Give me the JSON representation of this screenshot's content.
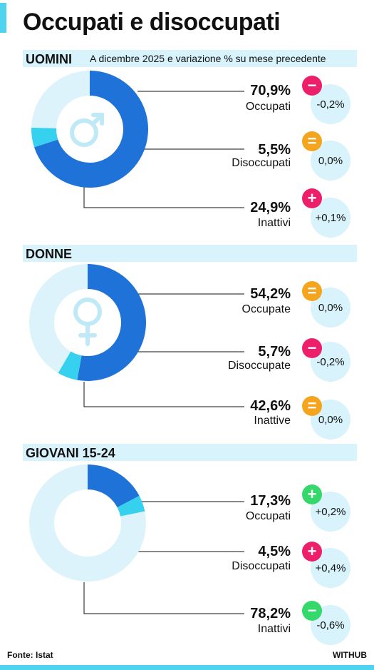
{
  "title": "Occupati e disoccupati",
  "subtitle": "A dicembre 2025 e variazione % su mese precedente",
  "source": "Fonte: Istat",
  "brand": "WITHUB",
  "colors": {
    "occupati": "#1f73d8",
    "disoccupati": "#36d1ef",
    "inattivi": "#dcf3fb",
    "badge_negative": "#ee1f6a",
    "badge_stable": "#f5a41d",
    "badge_positive_red": "#ee1f6a",
    "badge_positive_green": "#35d86a",
    "badge_negative_green": "#35d86a"
  },
  "chart_data": [
    {
      "type": "pie",
      "title": "UOMINI",
      "icon": "male-symbol-icon",
      "categories": [
        "Occupati",
        "Disoccupati",
        "Inattivi"
      ],
      "values": [
        70.9,
        5.5,
        24.9
      ],
      "labels": [
        "70,9%",
        "5,5%",
        "24,9%"
      ],
      "variations": [
        "-0,2%",
        "0,0%",
        "+0,1%"
      ],
      "badges": [
        {
          "symbol": "−",
          "color": "#ee1f6a"
        },
        {
          "symbol": "=",
          "color": "#f5a41d"
        },
        {
          "symbol": "+",
          "color": "#ee1f6a"
        }
      ]
    },
    {
      "type": "pie",
      "title": "DONNE",
      "icon": "female-symbol-icon",
      "categories": [
        "Occupate",
        "Disoccupate",
        "Inattive"
      ],
      "values": [
        54.2,
        5.7,
        42.6
      ],
      "labels": [
        "54,2%",
        "5,7%",
        "42,6%"
      ],
      "variations": [
        "0,0%",
        "-0,2%",
        "0,0%"
      ],
      "badges": [
        {
          "symbol": "=",
          "color": "#f5a41d"
        },
        {
          "symbol": "−",
          "color": "#ee1f6a"
        },
        {
          "symbol": "=",
          "color": "#f5a41d"
        }
      ]
    },
    {
      "type": "pie",
      "title": "GIOVANI 15-24",
      "icon": "",
      "categories": [
        "Occupati",
        "Disoccupati",
        "Inattivi"
      ],
      "values": [
        17.3,
        4.5,
        78.2
      ],
      "labels": [
        "17,3%",
        "4,5%",
        "78,2%"
      ],
      "variations": [
        "+0,2%",
        "+0,4%",
        "-0,6%"
      ],
      "badges": [
        {
          "symbol": "+",
          "color": "#35d86a"
        },
        {
          "symbol": "+",
          "color": "#ee1f6a"
        },
        {
          "symbol": "−",
          "color": "#35d86a"
        }
      ]
    }
  ]
}
